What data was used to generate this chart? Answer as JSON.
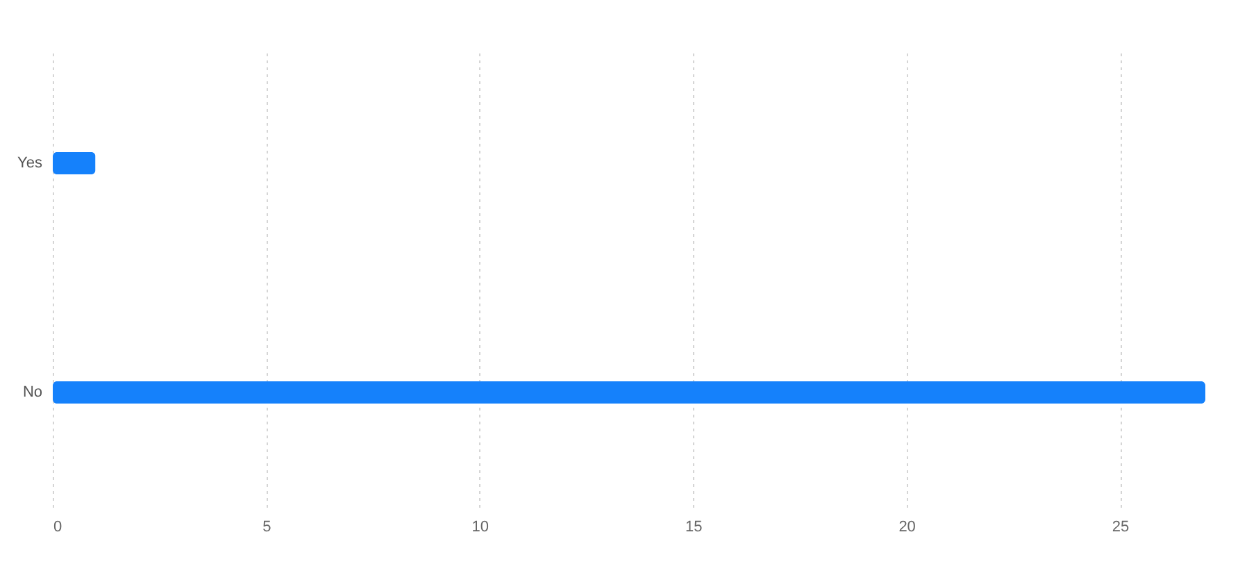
{
  "chart_data": {
    "type": "bar",
    "orientation": "horizontal",
    "categories": [
      "Yes",
      "No"
    ],
    "values": [
      1,
      27
    ],
    "color": "#1581fb",
    "xlim": [
      0,
      27
    ],
    "xticks": [
      0,
      5,
      10,
      15,
      20,
      25
    ],
    "grid": "x"
  }
}
